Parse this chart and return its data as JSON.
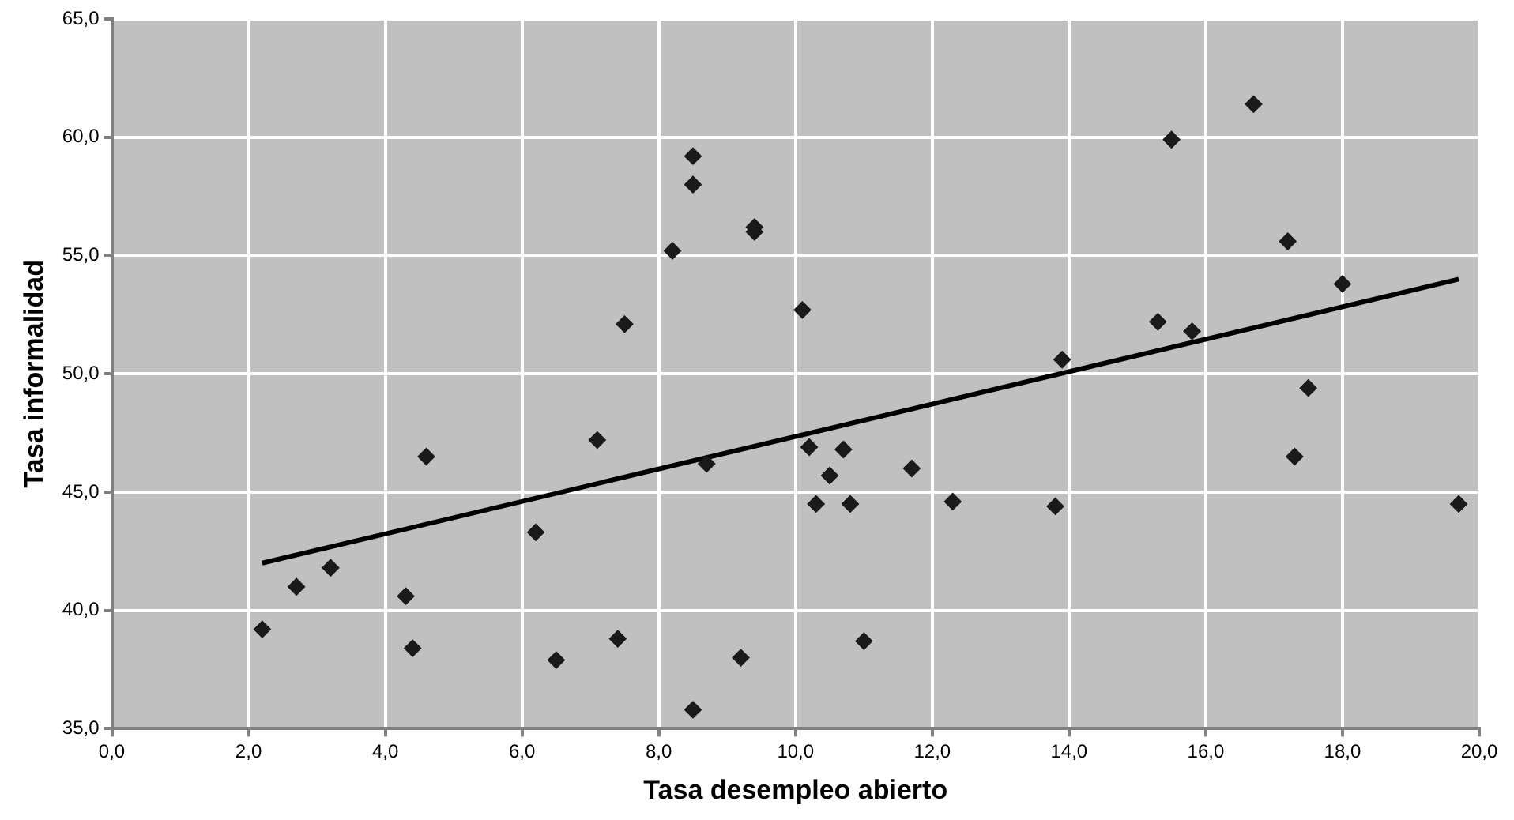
{
  "chart_data": {
    "type": "scatter",
    "xlabel": "Tasa desempleo abierto",
    "ylabel": "Tasa informalidad",
    "xlim": [
      0,
      20
    ],
    "ylim": [
      35,
      65
    ],
    "xticks": [
      {
        "value": 0,
        "label": "0,0"
      },
      {
        "value": 2,
        "label": "2,0"
      },
      {
        "value": 4,
        "label": "4,0"
      },
      {
        "value": 6,
        "label": "6,0"
      },
      {
        "value": 8,
        "label": "8,0"
      },
      {
        "value": 10,
        "label": "10,0"
      },
      {
        "value": 12,
        "label": "12,0"
      },
      {
        "value": 14,
        "label": "14,0"
      },
      {
        "value": 16,
        "label": "16,0"
      },
      {
        "value": 18,
        "label": "18,0"
      },
      {
        "value": 20,
        "label": "20,0"
      }
    ],
    "yticks": [
      {
        "value": 35,
        "label": "35,0"
      },
      {
        "value": 40,
        "label": "40,0"
      },
      {
        "value": 45,
        "label": "45,0"
      },
      {
        "value": 50,
        "label": "50,0"
      },
      {
        "value": 55,
        "label": "55,0"
      },
      {
        "value": 60,
        "label": "60,0"
      },
      {
        "value": 65,
        "label": "65,0"
      }
    ],
    "grid": true,
    "legend": false,
    "marker": "diamond",
    "series": [
      {
        "color": "#1a1a1a",
        "x": [
          2.2,
          2.7,
          3.2,
          4.3,
          4.4,
          4.6,
          6.2,
          6.5,
          7.1,
          7.4,
          7.5,
          8.2,
          8.5,
          8.5,
          8.5,
          8.7,
          9.2,
          9.4,
          9.4,
          10.1,
          10.2,
          10.3,
          10.5,
          10.7,
          10.8,
          11.0,
          11.7,
          12.3,
          13.8,
          13.9,
          15.3,
          15.5,
          15.8,
          16.7,
          17.2,
          17.3,
          17.5,
          18.0,
          19.7
        ],
        "values": [
          39.2,
          41.0,
          41.8,
          40.6,
          38.4,
          46.5,
          43.3,
          37.9,
          47.2,
          38.8,
          52.1,
          55.2,
          59.2,
          58.0,
          35.8,
          46.2,
          38.0,
          56.2,
          56.0,
          52.7,
          46.9,
          44.5,
          45.7,
          46.8,
          44.5,
          38.7,
          46.0,
          44.6,
          44.4,
          50.6,
          52.2,
          59.9,
          51.8,
          61.4,
          55.6,
          46.5,
          49.4,
          53.8,
          44.5
        ]
      },
      {
        "type": "line",
        "color": "#000000",
        "marker": "none",
        "x": [
          2.2,
          19.7
        ],
        "values": [
          42.0,
          54.0
        ]
      }
    ]
  }
}
